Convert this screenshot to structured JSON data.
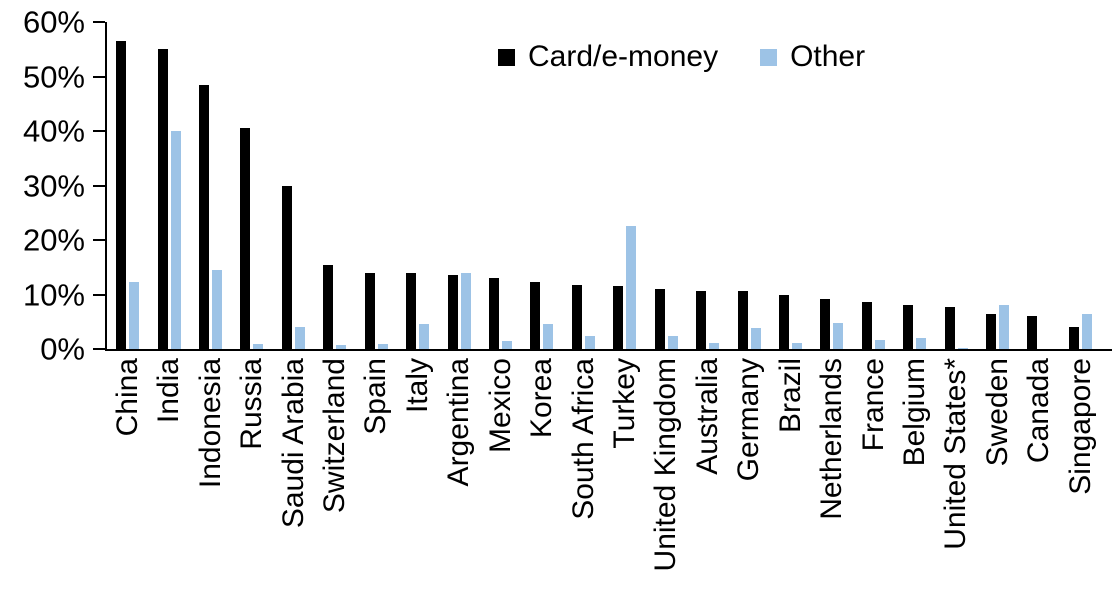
{
  "chart_data": {
    "type": "bar",
    "title": "",
    "categories": [
      "China",
      "India",
      "Indonesia",
      "Russia",
      "Saudi Arabia",
      "Switzerland",
      "Spain",
      "Italy",
      "Argentina",
      "Mexico",
      "Korea",
      "South Africa",
      "Turkey",
      "United Kingdom",
      "Australia",
      "Germany",
      "Brazil",
      "Netherlands",
      "France",
      "Belgium",
      "United States*",
      "Sweden",
      "Canada",
      "Singapore"
    ],
    "series": [
      {
        "name": "Card/e-money",
        "color": "#000000",
        "values": [
          56.5,
          55,
          48.5,
          40.5,
          30,
          15.5,
          14,
          14,
          13.5,
          13,
          12.3,
          11.8,
          11.5,
          11,
          10.7,
          10.7,
          10,
          9.2,
          8.6,
          8.1,
          7.7,
          6.4,
          6,
          4
        ]
      },
      {
        "name": "Other",
        "color": "#9DC3E6",
        "values": [
          12.3,
          40,
          14.5,
          1,
          4,
          0.8,
          1,
          4.6,
          14,
          1.4,
          4.6,
          2.4,
          22.5,
          2.4,
          1.1,
          3.9,
          1.1,
          4.8,
          1.6,
          2.1,
          0.2,
          8,
          0,
          6.5
        ]
      }
    ],
    "y_axis": {
      "ticks": [
        "0%",
        "10%",
        "20%",
        "30%",
        "40%",
        "50%",
        "60%"
      ],
      "min": 0,
      "max": 60,
      "tick_step": 10
    },
    "x_axis": {
      "label_rotation_degrees": 90
    },
    "legend": {
      "position": "top-center",
      "entries": [
        "Card/e-money",
        "Other"
      ]
    },
    "grid": false
  },
  "colors": {
    "axis": "#000000",
    "background": "#FFFFFF",
    "card_series": "#000000",
    "other_series": "#9DC3E6"
  }
}
